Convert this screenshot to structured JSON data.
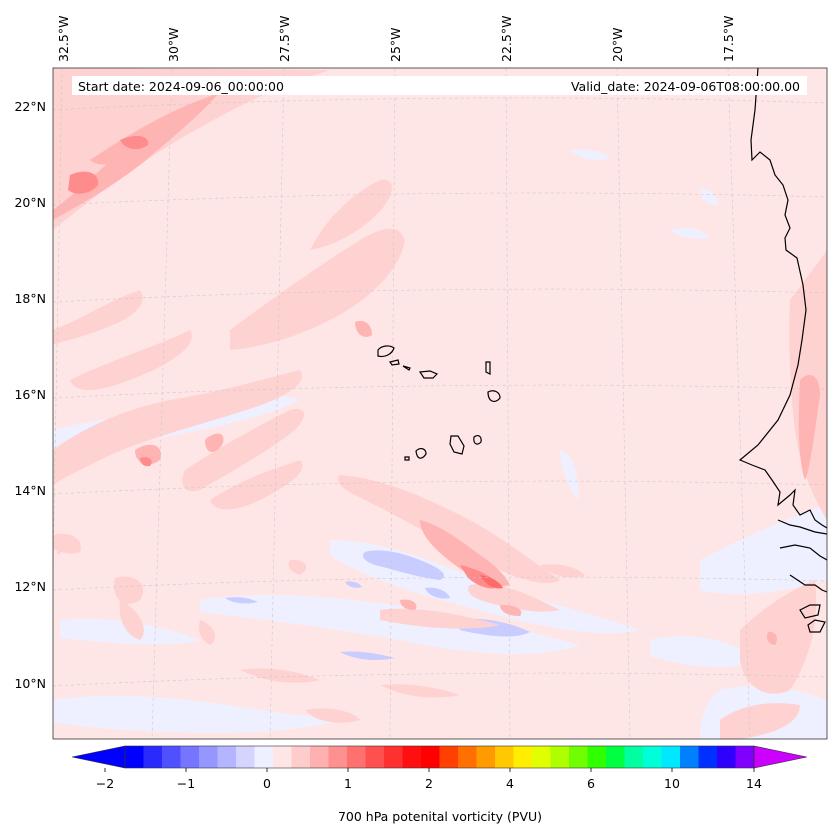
{
  "header": {
    "start_date": "Start date: 2024-09-06_00:00:00",
    "valid_date": "Valid_date: 2024-09-06T08:00:00.00"
  },
  "lon_labels": [
    "32.5°W",
    "30°W",
    "27.5°W",
    "25°W",
    "22.5°W",
    "20°W",
    "17.5°W"
  ],
  "lat_labels": [
    "22°N",
    "20°N",
    "18°N",
    "16°N",
    "14°N",
    "12°N",
    "10°N"
  ],
  "colorbar": {
    "label": "700 hPa potenital vorticity (PVU)",
    "tick_labels": [
      "−2",
      "−1",
      "0",
      "1",
      "2",
      "4",
      "6",
      "10",
      "14"
    ],
    "colors": [
      "#0000ff",
      "#2a2aff",
      "#5050ff",
      "#7575ff",
      "#9696ff",
      "#b4b4ff",
      "#d4d4ff",
      "#eef0ff",
      "#ffe6e6",
      "#ffcccc",
      "#ffb0b0",
      "#ff9090",
      "#ff7070",
      "#ff5050",
      "#ff3030",
      "#ff1010",
      "#ff0000",
      "#ff4000",
      "#ff7000",
      "#ff9a00",
      "#ffc800",
      "#ffee00",
      "#e0ff00",
      "#b0ff00",
      "#70ff00",
      "#30ff00",
      "#00ff40",
      "#00ffa0",
      "#00ffd8",
      "#00e8ff",
      "#0080ff",
      "#0030ff",
      "#3000ff",
      "#8000ff"
    ],
    "over_color": "#cc00ff",
    "under_color": "#0000ff"
  },
  "colors": {
    "background_field": "#ffe6e6",
    "coastline": "#000000",
    "gridline": "#bbbbbb"
  }
}
